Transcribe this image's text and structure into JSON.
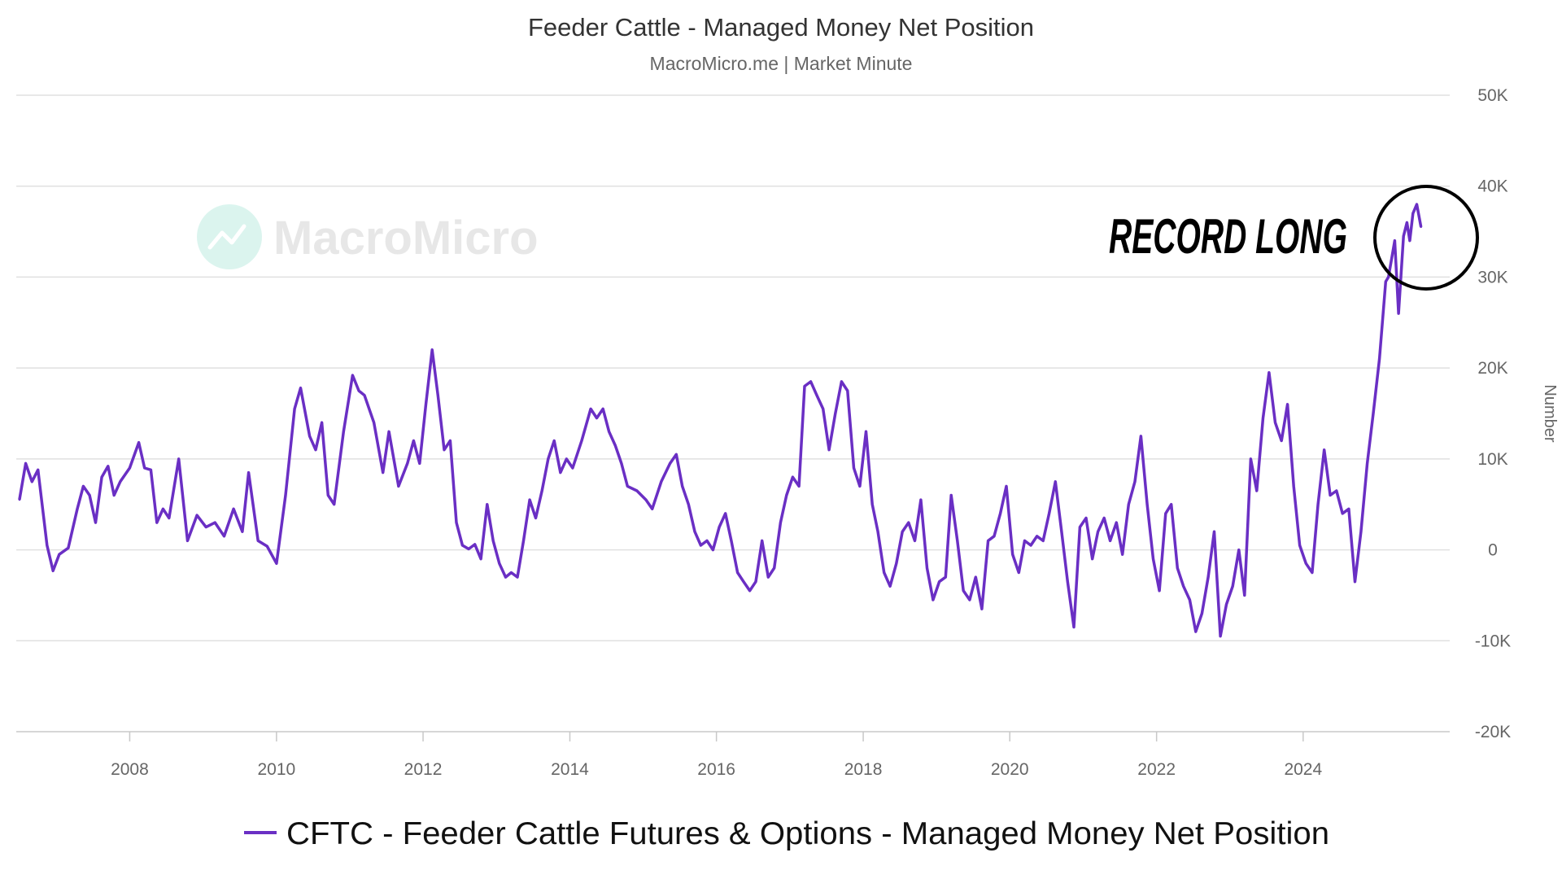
{
  "chart_data": {
    "type": "line",
    "title": "Feeder Cattle - Managed Money Net Position",
    "subtitle": "MacroMicro.me | Market Minute",
    "xlabel": "",
    "ylabel": "Number",
    "ylim": [
      -20000,
      50000
    ],
    "xlim": [
      "2006-06-15",
      "2025-12-31"
    ],
    "grid": "horizontal",
    "legend_position": "bottom-center",
    "y_ticks": [
      {
        "value": 50000,
        "label": "50K"
      },
      {
        "value": 40000,
        "label": "40K"
      },
      {
        "value": 30000,
        "label": "30K"
      },
      {
        "value": 20000,
        "label": "20K"
      },
      {
        "value": 10000,
        "label": "10K"
      },
      {
        "value": 0,
        "label": "0"
      },
      {
        "value": -10000,
        "label": "-10K"
      },
      {
        "value": -20000,
        "label": "-20K"
      }
    ],
    "x_ticks": [
      "2008",
      "2010",
      "2012",
      "2014",
      "2016",
      "2018",
      "2020",
      "2022",
      "2024"
    ],
    "watermark": "MacroMicro",
    "annotation": "RECORD LONG",
    "series": [
      {
        "name": "CFTC - Feeder Cattle Futures & Options - Managed Money Net Position",
        "color": "#6a2fc4",
        "points": [
          [
            "2006-07-01",
            5500
          ],
          [
            "2006-08-01",
            9500
          ],
          [
            "2006-09-01",
            7500
          ],
          [
            "2006-10-01",
            8800
          ],
          [
            "2006-11-15",
            500
          ],
          [
            "2006-12-15",
            -2300
          ],
          [
            "2007-01-15",
            -500
          ],
          [
            "2007-03-01",
            200
          ],
          [
            "2007-04-15",
            4500
          ],
          [
            "2007-05-15",
            7000
          ],
          [
            "2007-06-15",
            6000
          ],
          [
            "2007-07-15",
            3000
          ],
          [
            "2007-08-15",
            8000
          ],
          [
            "2007-09-15",
            9200
          ],
          [
            "2007-10-15",
            6000
          ],
          [
            "2007-11-15",
            7500
          ],
          [
            "2008-01-01",
            9000
          ],
          [
            "2008-02-15",
            11800
          ],
          [
            "2008-03-15",
            9000
          ],
          [
            "2008-04-15",
            8800
          ],
          [
            "2008-05-15",
            3000
          ],
          [
            "2008-06-15",
            4500
          ],
          [
            "2008-07-15",
            3500
          ],
          [
            "2008-09-01",
            10000
          ],
          [
            "2008-10-15",
            1000
          ],
          [
            "2008-12-01",
            3800
          ],
          [
            "2009-01-15",
            2500
          ],
          [
            "2009-03-01",
            3000
          ],
          [
            "2009-04-15",
            1500
          ],
          [
            "2009-06-01",
            4500
          ],
          [
            "2009-07-15",
            2000
          ],
          [
            "2009-08-15",
            8500
          ],
          [
            "2009-10-01",
            1000
          ],
          [
            "2009-11-15",
            400
          ],
          [
            "2010-01-01",
            -1500
          ],
          [
            "2010-02-15",
            6000
          ],
          [
            "2010-04-01",
            15500
          ],
          [
            "2010-05-01",
            17800
          ],
          [
            "2010-06-15",
            12500
          ],
          [
            "2010-07-15",
            11000
          ],
          [
            "2010-08-15",
            14000
          ],
          [
            "2010-09-15",
            6000
          ],
          [
            "2010-10-15",
            5000
          ],
          [
            "2010-12-01",
            13000
          ],
          [
            "2011-01-15",
            19200
          ],
          [
            "2011-02-15",
            17500
          ],
          [
            "2011-03-15",
            17000
          ],
          [
            "2011-05-01",
            14000
          ],
          [
            "2011-06-15",
            8500
          ],
          [
            "2011-07-15",
            13000
          ],
          [
            "2011-09-01",
            7000
          ],
          [
            "2011-10-15",
            9500
          ],
          [
            "2011-11-15",
            12000
          ],
          [
            "2011-12-15",
            9500
          ],
          [
            "2012-01-15",
            16000
          ],
          [
            "2012-02-15",
            22000
          ],
          [
            "2012-03-15",
            17000
          ],
          [
            "2012-04-15",
            11000
          ],
          [
            "2012-05-15",
            12000
          ],
          [
            "2012-06-15",
            3000
          ],
          [
            "2012-07-15",
            500
          ],
          [
            "2012-08-15",
            100
          ],
          [
            "2012-09-15",
            600
          ],
          [
            "2012-10-15",
            -1000
          ],
          [
            "2012-11-15",
            5000
          ],
          [
            "2012-12-15",
            1000
          ],
          [
            "2013-01-15",
            -1500
          ],
          [
            "2013-02-15",
            -3000
          ],
          [
            "2013-03-15",
            -2500
          ],
          [
            "2013-04-15",
            -3000
          ],
          [
            "2013-05-15",
            1000
          ],
          [
            "2013-06-15",
            5500
          ],
          [
            "2013-07-15",
            3500
          ],
          [
            "2013-08-15",
            6500
          ],
          [
            "2013-09-15",
            10000
          ],
          [
            "2013-10-15",
            12000
          ],
          [
            "2013-11-15",
            8500
          ],
          [
            "2013-12-15",
            10000
          ],
          [
            "2014-01-15",
            9000
          ],
          [
            "2014-03-01",
            12000
          ],
          [
            "2014-04-15",
            15500
          ],
          [
            "2014-05-15",
            14500
          ],
          [
            "2014-06-15",
            15500
          ],
          [
            "2014-07-15",
            13000
          ],
          [
            "2014-08-15",
            11500
          ],
          [
            "2014-09-15",
            9500
          ],
          [
            "2014-10-15",
            7000
          ],
          [
            "2014-12-01",
            6500
          ],
          [
            "2015-01-15",
            5500
          ],
          [
            "2015-02-15",
            4500
          ],
          [
            "2015-04-01",
            7500
          ],
          [
            "2015-05-15",
            9500
          ],
          [
            "2015-06-15",
            10500
          ],
          [
            "2015-07-15",
            7000
          ],
          [
            "2015-08-15",
            5000
          ],
          [
            "2015-09-15",
            2000
          ],
          [
            "2015-10-15",
            500
          ],
          [
            "2015-11-15",
            1000
          ],
          [
            "2015-12-15",
            0
          ],
          [
            "2016-01-15",
            2500
          ],
          [
            "2016-02-15",
            4000
          ],
          [
            "2016-03-15",
            1000
          ],
          [
            "2016-04-15",
            -2500
          ],
          [
            "2016-05-15",
            -3500
          ],
          [
            "2016-06-15",
            -4500
          ],
          [
            "2016-07-15",
            -3500
          ],
          [
            "2016-08-15",
            1000
          ],
          [
            "2016-09-15",
            -3000
          ],
          [
            "2016-10-15",
            -2000
          ],
          [
            "2016-11-15",
            3000
          ],
          [
            "2016-12-15",
            6000
          ],
          [
            "2017-01-15",
            8000
          ],
          [
            "2017-02-15",
            7000
          ],
          [
            "2017-03-15",
            18000
          ],
          [
            "2017-04-15",
            18500
          ],
          [
            "2017-05-15",
            17000
          ],
          [
            "2017-06-15",
            15500
          ],
          [
            "2017-07-15",
            11000
          ],
          [
            "2017-08-15",
            15000
          ],
          [
            "2017-09-15",
            18500
          ],
          [
            "2017-10-15",
            17500
          ],
          [
            "2017-11-15",
            9000
          ],
          [
            "2017-12-15",
            7000
          ],
          [
            "2018-01-15",
            13000
          ],
          [
            "2018-02-15",
            5000
          ],
          [
            "2018-03-15",
            2000
          ],
          [
            "2018-04-15",
            -2500
          ],
          [
            "2018-05-15",
            -4000
          ],
          [
            "2018-06-15",
            -1500
          ],
          [
            "2018-07-15",
            2000
          ],
          [
            "2018-08-15",
            3000
          ],
          [
            "2018-09-15",
            1000
          ],
          [
            "2018-10-15",
            5500
          ],
          [
            "2018-11-15",
            -2000
          ],
          [
            "2018-12-15",
            -5500
          ],
          [
            "2019-01-15",
            -3500
          ],
          [
            "2019-02-15",
            -3000
          ],
          [
            "2019-03-15",
            6000
          ],
          [
            "2019-04-15",
            1000
          ],
          [
            "2019-05-15",
            -4500
          ],
          [
            "2019-06-15",
            -5500
          ],
          [
            "2019-07-15",
            -3000
          ],
          [
            "2019-08-15",
            -6500
          ],
          [
            "2019-09-15",
            1000
          ],
          [
            "2019-10-15",
            1500
          ],
          [
            "2019-11-15",
            4000
          ],
          [
            "2019-12-15",
            7000
          ],
          [
            "2020-01-15",
            -500
          ],
          [
            "2020-02-15",
            -2500
          ],
          [
            "2020-03-15",
            1000
          ],
          [
            "2020-04-15",
            500
          ],
          [
            "2020-05-15",
            1500
          ],
          [
            "2020-06-15",
            1000
          ],
          [
            "2020-07-15",
            4000
          ],
          [
            "2020-08-15",
            7500
          ],
          [
            "2020-09-15",
            2000
          ],
          [
            "2020-10-15",
            -3500
          ],
          [
            "2020-11-15",
            -8500
          ],
          [
            "2020-12-15",
            2500
          ],
          [
            "2021-01-15",
            3500
          ],
          [
            "2021-02-15",
            -1000
          ],
          [
            "2021-03-15",
            2000
          ],
          [
            "2021-04-15",
            3500
          ],
          [
            "2021-05-15",
            1000
          ],
          [
            "2021-06-15",
            3000
          ],
          [
            "2021-07-15",
            -500
          ],
          [
            "2021-08-15",
            5000
          ],
          [
            "2021-09-15",
            7500
          ],
          [
            "2021-10-15",
            12500
          ],
          [
            "2021-11-15",
            5000
          ],
          [
            "2021-12-15",
            -1000
          ],
          [
            "2022-01-15",
            -4500
          ],
          [
            "2022-02-15",
            4000
          ],
          [
            "2022-03-15",
            5000
          ],
          [
            "2022-04-15",
            -2000
          ],
          [
            "2022-05-15",
            -4000
          ],
          [
            "2022-06-15",
            -5500
          ],
          [
            "2022-07-15",
            -9000
          ],
          [
            "2022-08-15",
            -7000
          ],
          [
            "2022-09-15",
            -3000
          ],
          [
            "2022-10-15",
            2000
          ],
          [
            "2022-11-15",
            -9500
          ],
          [
            "2022-12-15",
            -6000
          ],
          [
            "2023-01-15",
            -4000
          ],
          [
            "2023-02-15",
            0
          ],
          [
            "2023-03-15",
            -5000
          ],
          [
            "2023-04-15",
            10000
          ],
          [
            "2023-05-15",
            6500
          ],
          [
            "2023-06-15",
            14500
          ],
          [
            "2023-07-15",
            19500
          ],
          [
            "2023-08-15",
            14000
          ],
          [
            "2023-09-15",
            12000
          ],
          [
            "2023-10-15",
            16000
          ],
          [
            "2023-11-15",
            7000
          ],
          [
            "2023-12-15",
            500
          ],
          [
            "2024-01-15",
            -1500
          ],
          [
            "2024-02-15",
            -2500
          ],
          [
            "2024-03-15",
            5000
          ],
          [
            "2024-04-15",
            11000
          ],
          [
            "2024-05-15",
            6000
          ],
          [
            "2024-06-15",
            6500
          ],
          [
            "2024-07-15",
            4000
          ],
          [
            "2024-08-15",
            4500
          ],
          [
            "2024-09-15",
            -3500
          ],
          [
            "2024-10-15",
            2000
          ],
          [
            "2024-11-15",
            9500
          ],
          [
            "2024-12-15",
            15000
          ],
          [
            "2025-01-15",
            21000
          ],
          [
            "2025-02-15",
            29500
          ],
          [
            "2025-03-01",
            30000
          ],
          [
            "2025-04-01",
            34000
          ],
          [
            "2025-04-20",
            26000
          ],
          [
            "2025-05-15",
            34500
          ],
          [
            "2025-06-01",
            36000
          ],
          [
            "2025-06-15",
            34000
          ],
          [
            "2025-07-01",
            37000
          ],
          [
            "2025-07-20",
            38000
          ],
          [
            "2025-08-10",
            35500
          ]
        ]
      }
    ]
  }
}
